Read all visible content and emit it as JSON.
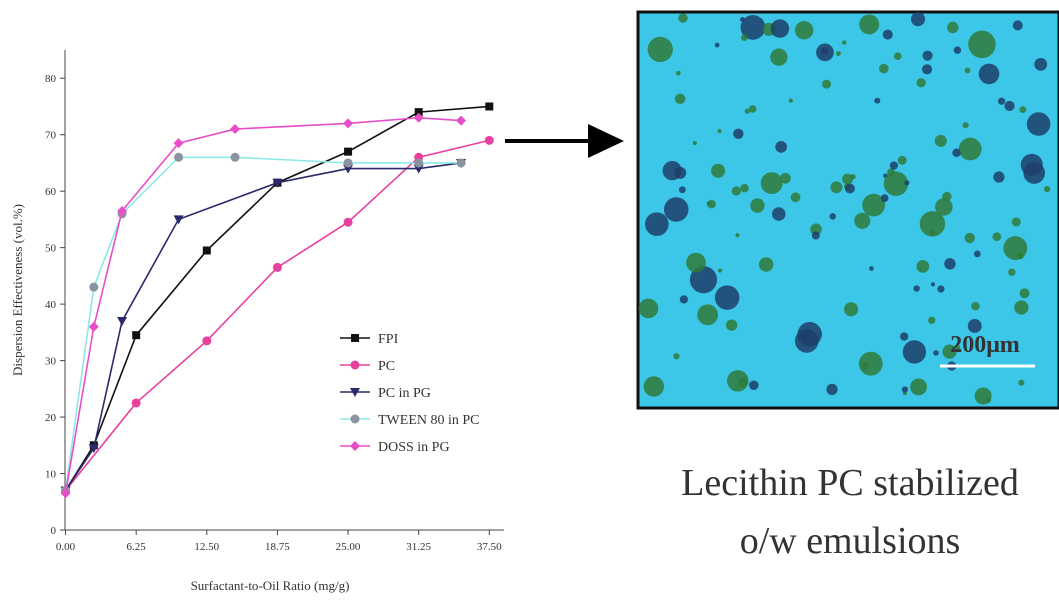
{
  "chart_data": {
    "type": "line",
    "x_label": "Surfactant-to-Oil Ratio (mg/g)",
    "y_label": "Dispersion Effectiveness (vol.%)",
    "xlim": [
      -1.2,
      38.8
    ],
    "ylim": [
      0,
      85
    ],
    "xticks": [
      {
        "value": 0,
        "label": "0.00"
      },
      {
        "value": 6.25,
        "label": "6.25"
      },
      {
        "value": 12.5,
        "label": "12.50"
      },
      {
        "value": 18.75,
        "label": "18.75"
      },
      {
        "value": 25,
        "label": "25.00"
      },
      {
        "value": 31.25,
        "label": "31.25"
      },
      {
        "value": 37.5,
        "label": "37.50"
      }
    ],
    "yticks": [
      0,
      10,
      20,
      30,
      40,
      50,
      60,
      70,
      80
    ],
    "series": [
      {
        "name": "FPI",
        "color": "#111111",
        "marker": "square",
        "x": [
          0,
          2.5,
          6.25,
          12.5,
          18.75,
          25,
          31.25,
          37.5
        ],
        "values": [
          7,
          15,
          34.5,
          49.5,
          61.5,
          67,
          74,
          75
        ]
      },
      {
        "name": "PC",
        "color": "#e8409e",
        "marker": "circle",
        "x": [
          0,
          6.25,
          12.5,
          18.75,
          25,
          31.25,
          37.5
        ],
        "values": [
          7,
          22.5,
          33.5,
          46.5,
          54.5,
          66,
          69
        ]
      },
      {
        "name": "PC in PG",
        "color": "#2b2a6a",
        "marker": "triangle-down",
        "x": [
          0,
          2.5,
          5,
          10,
          18.75,
          25,
          31.25,
          35
        ],
        "values": [
          7,
          14.5,
          37,
          55,
          61.5,
          64,
          64,
          65
        ]
      },
      {
        "name": "TWEEN 80 in PC",
        "color": "#8ee8e8",
        "marker": "circle-gray",
        "x": [
          0,
          2.5,
          5,
          10,
          15,
          25,
          31.25,
          35
        ],
        "values": [
          7,
          43,
          56,
          66,
          66,
          65,
          65,
          65
        ]
      },
      {
        "name": "DOSS in PG",
        "color": "#e84ec8",
        "marker": "diamond",
        "x": [
          0,
          2.5,
          5,
          10,
          15,
          25,
          31.25,
          35
        ],
        "values": [
          6.5,
          36,
          56.5,
          68.5,
          71,
          72,
          73,
          72.5
        ]
      }
    ]
  },
  "image": {
    "scale_label": "200μm",
    "caption": [
      "Lecithin PC stabilized",
      "o/w emulsions"
    ]
  }
}
